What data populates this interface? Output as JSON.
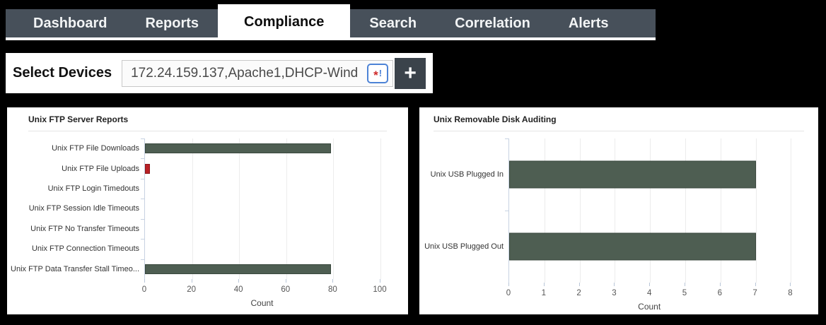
{
  "navbar": {
    "tabs": [
      {
        "label": "Dashboard",
        "active": false
      },
      {
        "label": "Reports",
        "active": false
      },
      {
        "label": "Compliance",
        "active": true
      },
      {
        "label": "Search",
        "active": false
      },
      {
        "label": "Correlation",
        "active": false
      },
      {
        "label": "Alerts",
        "active": false
      }
    ]
  },
  "device_selector": {
    "label": "Select Devices",
    "value": "172.24.159.137,Apache1,DHCP-Wind",
    "warning_icon": {
      "asterisk": "*",
      "exclamation": "!"
    },
    "add_button_label": "+"
  },
  "colors": {
    "nav_background": "#47505a",
    "active_tab_background": "#ffffff",
    "bar_green": "#4e5e52",
    "bar_green_border": "#39483d",
    "bar_red": "#b92025",
    "bar_red_border": "#8e181c",
    "axis": "#c7d2e2",
    "gridline": "#ececec"
  },
  "chart_data": [
    {
      "type": "bar",
      "orientation": "horizontal",
      "title": "Unix FTP Server Reports",
      "categories": [
        "Unix FTP File Downloads",
        "Unix FTP File Uploads",
        "Unix FTP Login Timedouts",
        "Unix FTP Session Idle Timeouts",
        "Unix FTP No Transfer Timeouts",
        "Unix FTP Connection Timeouts",
        "Unix FTP Data Transfer Stall Timeo..."
      ],
      "values": [
        79,
        2,
        0,
        0,
        0,
        0,
        79
      ],
      "bar_colors": [
        "green",
        "red",
        "green",
        "green",
        "green",
        "green",
        "green"
      ],
      "xticks": [
        0,
        20,
        40,
        60,
        80,
        100
      ],
      "xlim": [
        0,
        107
      ],
      "xlabel": "Count",
      "grid": true,
      "legend": null
    },
    {
      "type": "bar",
      "orientation": "horizontal",
      "title": "Unix Removable Disk Auditing",
      "categories": [
        "Unix USB Plugged In",
        "Unix USB Plugged Out"
      ],
      "values": [
        7,
        7
      ],
      "bar_colors": [
        "green",
        "green"
      ],
      "xticks": [
        0,
        1,
        2,
        3,
        4,
        5,
        6,
        7,
        8
      ],
      "xlim": [
        0,
        8.45
      ],
      "xlabel": "Count",
      "grid": true,
      "legend": null
    }
  ]
}
